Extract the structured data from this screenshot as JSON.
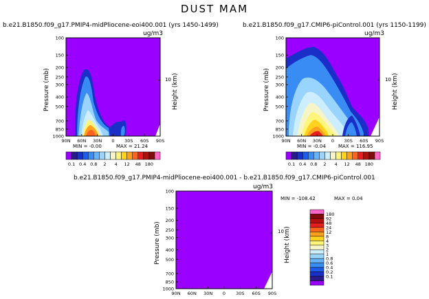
{
  "page_title": "DUST MAM",
  "chart_data": [
    {
      "type": "heatmap",
      "panel": "top-left",
      "title": "b.e21.B1850.f09_g17.PMIP4-midPliocene-eoi400.001 (yrs 1450-1499)",
      "units": "ug/m3",
      "ylabel": "Pressure (mb)",
      "ylabel_right": "Height (km)",
      "height_tick": "10",
      "x_ticks": [
        "90N",
        "60N",
        "30N",
        "0",
        "30S",
        "60S",
        "90S"
      ],
      "y_ticks": [
        "100",
        "150",
        "200",
        "250",
        "300",
        "400",
        "500",
        "700",
        "850",
        "1000"
      ],
      "ylim": [
        1000,
        100
      ],
      "xlim": [
        90,
        -90
      ],
      "min_label": "MIN = -0.00",
      "max_label": "MAX = 21.24",
      "min": -0.0,
      "max": 21.24
    },
    {
      "type": "heatmap",
      "panel": "top-right",
      "title": "b.e21.B1850.f09_g17.CMIP6-piControl.001 (yrs 1150-1199)",
      "units": "ug/m3",
      "ylabel": "Pressure (mb)",
      "ylabel_right": "Height (km)",
      "height_tick": "10",
      "x_ticks": [
        "90N",
        "60N",
        "30N",
        "0",
        "30S",
        "60S",
        "90S"
      ],
      "y_ticks": [
        "100",
        "150",
        "200",
        "250",
        "300",
        "400",
        "500",
        "700",
        "850",
        "1000"
      ],
      "ylim": [
        1000,
        100
      ],
      "xlim": [
        90,
        -90
      ],
      "min_label": "MIN = -0.04",
      "max_label": "MAX = 116.95",
      "min": -0.04,
      "max": 116.95
    },
    {
      "type": "heatmap",
      "panel": "bottom-difference",
      "title": "b.e21.B1850.f09_g17.PMIP4-midPliocene-eoi400.001 - b.e21.B1850.f09_g17.CMIP6-piControl.001",
      "units": "ug/m3",
      "ylabel": "Pressure (mb)",
      "ylabel_right": "Height (km)",
      "height_tick": "10",
      "x_ticks": [
        "90N",
        "60N",
        "30N",
        "0",
        "30S",
        "60S",
        "90S"
      ],
      "y_ticks": [
        "100",
        "150",
        "200",
        "250",
        "300",
        "400",
        "500",
        "700",
        "850",
        "1000"
      ],
      "ylim": [
        1000,
        100
      ],
      "xlim": [
        90,
        -90
      ],
      "min_label": "MIN = -108.42",
      "max_label": "MAX = 0.04",
      "min": -108.42,
      "max": 0.04
    }
  ],
  "colorbar_top": {
    "levels": [
      "0.1",
      "0.4",
      "0.8",
      "2",
      "4",
      "12",
      "48",
      "180"
    ],
    "colors": [
      "#9a00ff",
      "#2a1a8c",
      "#1a2ec8",
      "#1e5cf0",
      "#3a8cf5",
      "#66b4ff",
      "#99d4ff",
      "#cceeff",
      "#f5f5c8",
      "#fff57a",
      "#ffd21e",
      "#ffa01e",
      "#ff641e",
      "#e61e1e",
      "#b40f0f",
      "#820a0a",
      "#ff64c8"
    ]
  },
  "colorbar_bottom": {
    "levels": [
      "180",
      "92",
      "48",
      "24",
      "12",
      "8",
      "4",
      "3",
      "2",
      "1",
      "0.8",
      "0.6",
      "0.4",
      "0.2",
      "0.1"
    ],
    "colors": [
      "#ff64c8",
      "#820a0a",
      "#b40f0f",
      "#e61e1e",
      "#ff641e",
      "#ffa01e",
      "#ffd21e",
      "#fff57a",
      "#f5f5c8",
      "#cceeff",
      "#99d4ff",
      "#66b4ff",
      "#3a8cf5",
      "#1e5cf0",
      "#1a2ec8",
      "#2a1a8c",
      "#9a00ff"
    ]
  }
}
